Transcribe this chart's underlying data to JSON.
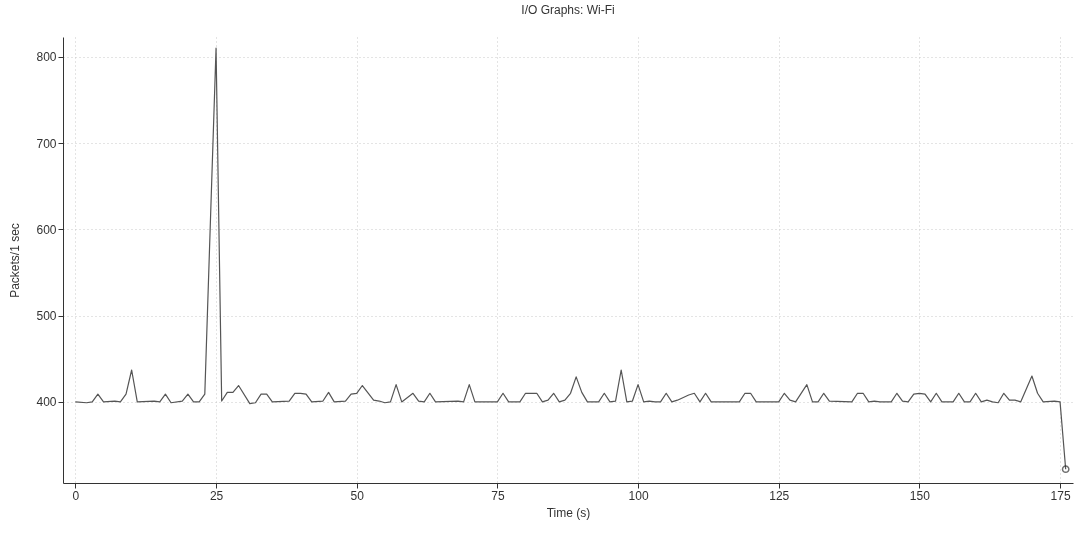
{
  "chart_data": {
    "type": "line",
    "title": "I/O Graphs: Wi-Fi",
    "xlabel": "Time (s)",
    "ylabel": "Packets/1 sec",
    "xlim": [
      -2.2,
      177.3
    ],
    "ylim": [
      306,
      823
    ],
    "xticks": [
      0,
      25,
      50,
      75,
      100,
      125,
      150,
      175
    ],
    "yticks": [
      400,
      500,
      600,
      700,
      800
    ],
    "grid": true,
    "line_style": "solid",
    "series": [
      {
        "color": "#555555",
        "x": [
          0,
          2,
          3,
          4,
          5,
          7,
          8,
          9,
          10,
          11,
          14,
          15,
          16,
          17,
          19,
          20,
          21,
          22,
          23,
          25,
          26,
          27,
          28,
          29,
          31,
          32,
          33,
          34,
          35,
          38,
          39,
          40,
          41,
          42,
          44,
          45,
          46,
          48,
          49,
          50,
          51,
          53,
          54,
          55,
          56,
          57,
          58,
          60,
          61,
          62,
          63,
          64,
          68,
          69,
          70,
          71,
          75,
          76,
          77,
          79,
          80,
          82,
          83,
          84,
          85,
          86,
          87,
          88,
          89,
          90,
          91,
          93,
          94,
          95,
          96,
          97,
          98,
          99,
          100,
          101,
          102,
          103,
          104,
          105,
          106,
          107,
          109,
          110,
          111,
          112,
          113,
          117,
          118,
          119,
          120,
          121,
          125,
          126,
          127,
          128,
          130,
          131,
          132,
          133,
          134,
          138,
          139,
          140,
          141,
          142,
          143,
          145,
          146,
          147,
          148,
          149,
          150,
          151,
          152,
          153,
          154,
          156,
          157,
          158,
          159,
          160,
          161,
          162,
          163,
          164,
          165,
          166,
          167,
          168,
          170,
          171,
          172,
          174,
          175,
          176
        ],
        "values": [
          400,
          399,
          400,
          409,
          400,
          401,
          400,
          409,
          437,
          400,
          401,
          400,
          409,
          399,
          401,
          409,
          400,
          400,
          409,
          810,
          401,
          411,
          411,
          419,
          398,
          399,
          409,
          409,
          400,
          401,
          410,
          410,
          409,
          400,
          401,
          411,
          400,
          401,
          409,
          410,
          419,
          402,
          401,
          399,
          400,
          420,
          400,
          410,
          401,
          400,
          410,
          400,
          401,
          400,
          420,
          400,
          400,
          410,
          400,
          400,
          410,
          410,
          400,
          402,
          410,
          400,
          402,
          410,
          429,
          411,
          400,
          400,
          410,
          400,
          401,
          437,
          400,
          401,
          420,
          400,
          401,
          400,
          400,
          410,
          400,
          402,
          408,
          410,
          400,
          410,
          400,
          400,
          400,
          410,
          410,
          400,
          400,
          410,
          402,
          400,
          420,
          400,
          400,
          410,
          401,
          400,
          410,
          410,
          400,
          401,
          400,
          400,
          410,
          401,
          400,
          409,
          410,
          409,
          400,
          410,
          400,
          400,
          410,
          400,
          400,
          410,
          400,
          402,
          400,
          399,
          410,
          402,
          402,
          400,
          430,
          410,
          400,
          401,
          400,
          322
        ]
      },
      {
        "type": "scatter",
        "marker": "circle",
        "color": "#333333",
        "x": [
          176
        ],
        "values": [
          322
        ]
      }
    ]
  }
}
